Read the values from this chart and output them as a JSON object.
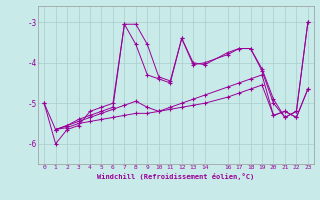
{
  "xlabel": "Windchill (Refroidissement éolien,°C)",
  "bg_color": "#c8eae8",
  "line_color": "#990099",
  "grid_color": "#aacccc",
  "xlim": [
    -0.5,
    23.5
  ],
  "ylim": [
    -6.5,
    -2.6
  ],
  "xtick_values": [
    0,
    1,
    2,
    3,
    4,
    5,
    6,
    7,
    8,
    9,
    10,
    11,
    12,
    13,
    14,
    16,
    17,
    18,
    19,
    20,
    21,
    22,
    23
  ],
  "xtick_labels": [
    "0",
    "1",
    "2",
    "3",
    "4",
    "5",
    "6",
    "7",
    "8",
    "9",
    "10",
    "11",
    "12",
    "13",
    "14",
    "16",
    "17",
    "18",
    "19",
    "20",
    "21",
    "22",
    "23"
  ],
  "ytick_values": [
    -3,
    -4,
    -5,
    -6
  ],
  "ytick_labels": [
    "-3",
    "-4",
    "-5",
    "-6"
  ],
  "lines": [
    {
      "x": [
        0,
        1,
        2,
        3,
        4,
        5,
        6,
        7,
        8,
        9,
        10,
        11,
        12,
        13,
        14,
        16,
        17,
        18,
        19,
        20,
        21,
        22,
        23
      ],
      "y": [
        -5.0,
        -6.0,
        -5.65,
        -5.55,
        -5.2,
        -5.1,
        -5.0,
        -3.05,
        -3.05,
        -3.55,
        -4.35,
        -4.45,
        -3.4,
        -4.05,
        -4.0,
        -3.8,
        -3.65,
        -3.65,
        -4.2,
        -5.0,
        -5.35,
        -5.2,
        -3.0
      ]
    },
    {
      "x": [
        1,
        2,
        3,
        4,
        5,
        6,
        7,
        8,
        9,
        10,
        11,
        12,
        13,
        14,
        16,
        17,
        18,
        19,
        20,
        21,
        22,
        23
      ],
      "y": [
        -5.65,
        -5.55,
        -5.45,
        -5.35,
        -5.25,
        -5.15,
        -5.05,
        -4.95,
        -5.1,
        -5.2,
        -5.1,
        -5.0,
        -4.9,
        -4.8,
        -4.6,
        -4.5,
        -4.4,
        -4.3,
        -5.3,
        -5.2,
        -5.35,
        -4.65
      ]
    },
    {
      "x": [
        1,
        2,
        3,
        4,
        5,
        6,
        7,
        8,
        9,
        10,
        11,
        12,
        13,
        14,
        16,
        17,
        18,
        19,
        20,
        21,
        22,
        23
      ],
      "y": [
        -5.65,
        -5.6,
        -5.5,
        -5.45,
        -5.4,
        -5.35,
        -5.3,
        -5.25,
        -5.25,
        -5.2,
        -5.15,
        -5.1,
        -5.05,
        -5.0,
        -4.85,
        -4.75,
        -4.65,
        -4.55,
        -5.3,
        -5.2,
        -5.35,
        -4.65
      ]
    },
    {
      "x": [
        0,
        1,
        2,
        3,
        4,
        5,
        6,
        7,
        8,
        9,
        10,
        11,
        12,
        13,
        14,
        16,
        17,
        18,
        19,
        20,
        21,
        22,
        23
      ],
      "y": [
        -5.0,
        -5.65,
        -5.55,
        -5.4,
        -5.3,
        -5.2,
        -5.1,
        -3.05,
        -3.55,
        -4.3,
        -4.4,
        -4.5,
        -3.4,
        -4.0,
        -4.05,
        -3.75,
        -3.65,
        -3.65,
        -4.15,
        -4.9,
        -5.35,
        -5.2,
        -3.0
      ]
    }
  ]
}
